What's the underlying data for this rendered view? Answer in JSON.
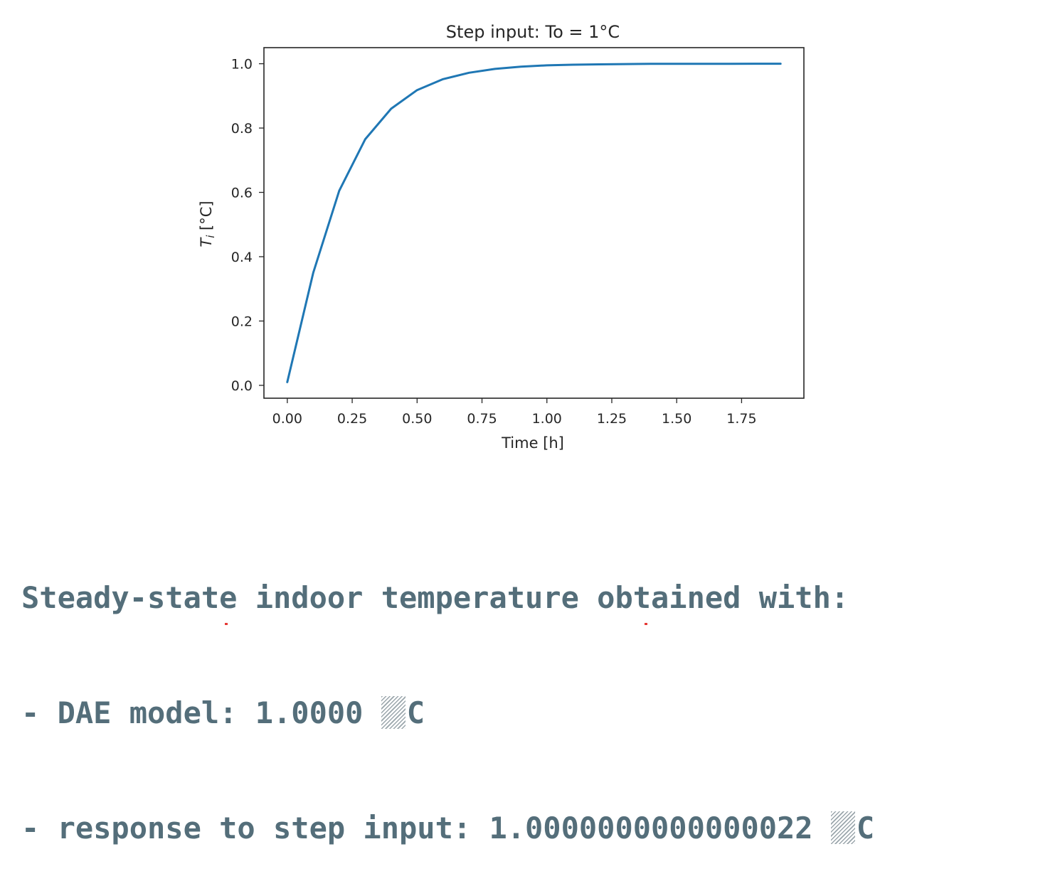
{
  "chart_data": {
    "type": "line",
    "title": "Step input: To = 1°C",
    "xlabel": "Time [h]",
    "ylabel": "Ti [°C]",
    "xlim": [
      -0.09,
      1.99
    ],
    "ylim": [
      -0.04,
      1.05
    ],
    "xticks": [
      0,
      0.25,
      0.5,
      0.75,
      1.0,
      1.25,
      1.5,
      1.75
    ],
    "xtick_labels": [
      "0.00",
      "0.25",
      "0.50",
      "0.75",
      "1.00",
      "1.25",
      "1.50",
      "1.75"
    ],
    "yticks": [
      0,
      0.2,
      0.4,
      0.6,
      0.8,
      1.0
    ],
    "ytick_labels": [
      "0.0",
      "0.2",
      "0.4",
      "0.6",
      "0.8",
      "1.0"
    ],
    "grid": false,
    "legend": "none",
    "series": [
      {
        "color": "#1f77b4",
        "x": [
          0,
          0.1,
          0.2,
          0.3,
          0.4,
          0.5,
          0.6,
          0.7,
          0.8,
          0.9,
          1.0,
          1.1,
          1.2,
          1.3,
          1.4,
          1.5,
          1.6,
          1.7,
          1.8,
          1.9
        ],
        "y": [
          0.01,
          0.35,
          0.605,
          0.765,
          0.86,
          0.918,
          0.952,
          0.972,
          0.984,
          0.991,
          0.995,
          0.997,
          0.998,
          0.999,
          0.9995,
          0.9997,
          0.9998,
          0.9999,
          1.0,
          1.0
        ]
      }
    ]
  },
  "output": {
    "line1": "Steady-state indoor temperature obtained with:",
    "line2_prefix": "- DAE model: 1.0000 ",
    "line2_suffix": "C",
    "line3_prefix": "- response to step input: 1.0000000000000022 ",
    "line3_suffix": "C"
  }
}
